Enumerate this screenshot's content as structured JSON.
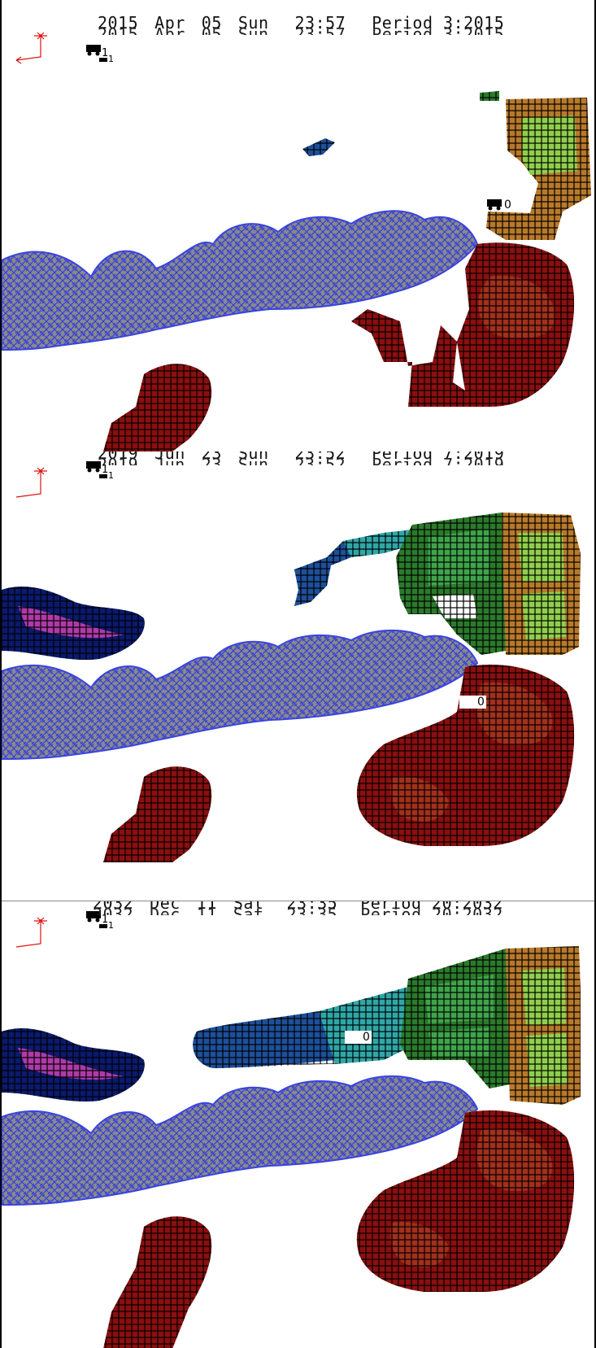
{
  "panels": [
    {
      "id": "p1",
      "date_line": {
        "year": "2015",
        "month": "Apr",
        "day": "05",
        "weekday": "Sun",
        "time": "23:57",
        "period": "Period 3:2015"
      },
      "truck_ids": {
        "top_left": "1",
        "top_left_sub": "1",
        "site": "0"
      }
    },
    {
      "id": "p2",
      "date_line": {
        "year": "2019",
        "month": "Jun",
        "day": "23",
        "weekday": "Sun",
        "time": "23:52",
        "period": "Period 7:2019"
      },
      "truck_ids": {
        "top_left": "1",
        "top_left_sub": "1",
        "site": "0"
      }
    },
    {
      "id": "p3",
      "date_line": {
        "year": "2032",
        "month": "Dec",
        "day": "11",
        "weekday": "Sat",
        "time": "23:35",
        "period": "Period 20:2032"
      },
      "truck_ids": {
        "top_left": "1",
        "top_left_sub": "1",
        "site": "0"
      }
    }
  ],
  "colors": {
    "red_dump": "#8b0f0f",
    "red_inner": "#a2301c",
    "orange_dump": "#b8792a",
    "green_light": "#8fcf4c",
    "green_dark": "#2b7a2b",
    "green_mid": "#3fa44a",
    "teal": "#2fa7a8",
    "blue_dump": "#1d4f9a",
    "navy": "#0a1a6e",
    "magenta": "#b03aa8",
    "pit_blue": "#3a44e0",
    "pit_gray": "#8a8a8a",
    "axis_red": "#e01010"
  },
  "icons": [
    "axis-triad-icon",
    "haul-truck-icon"
  ]
}
